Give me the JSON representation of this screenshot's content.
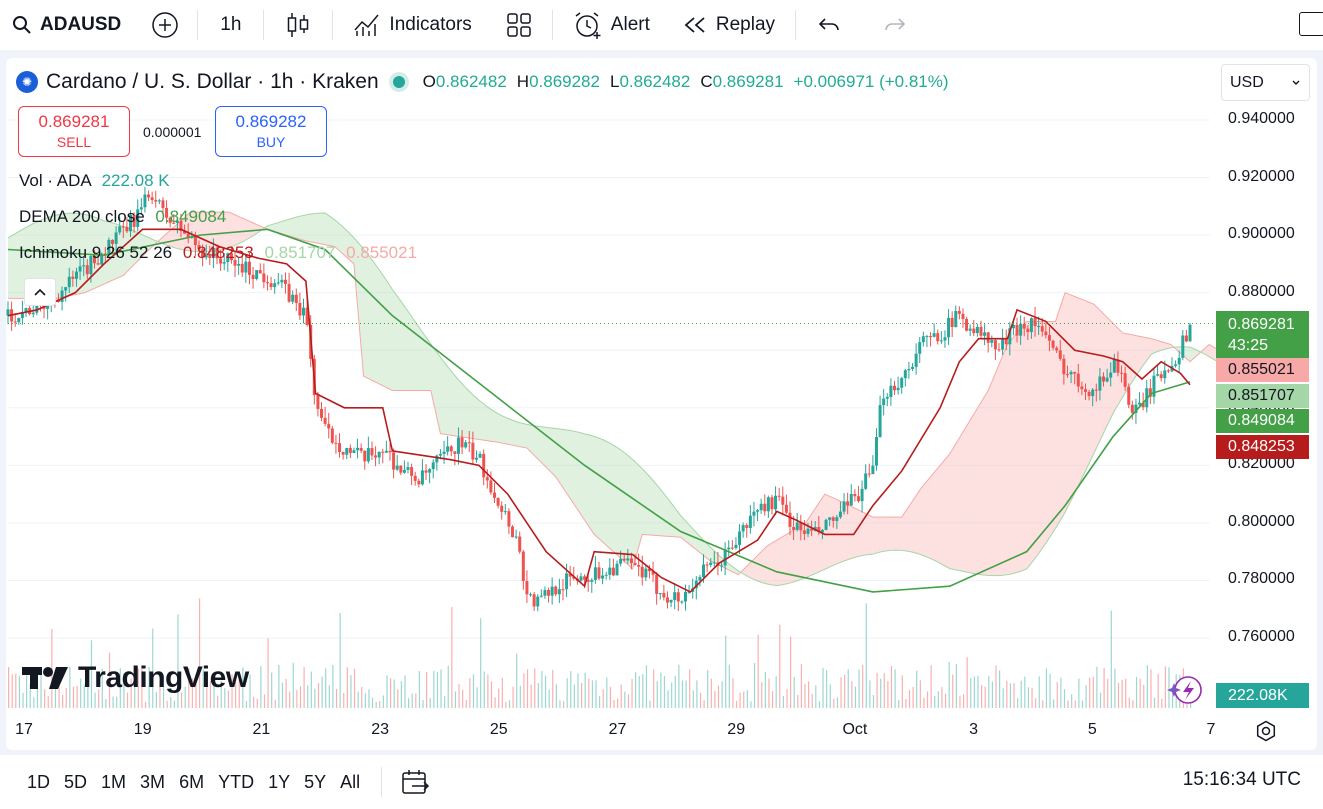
{
  "toolbar": {
    "symbol": "ADAUSD",
    "interval": "1h",
    "indicators_label": "Indicators",
    "alert_label": "Alert",
    "replay_label": "Replay"
  },
  "legend": {
    "title": "Cardano / U. S. Dollar · 1h · Kraken",
    "ohlc": {
      "o_label": "O",
      "o": "0.862482",
      "h_label": "H",
      "h": "0.869282",
      "l_label": "L",
      "l": "0.862482",
      "c_label": "C",
      "c": "0.869281",
      "change": "+0.006971 (+0.81%)"
    },
    "sell_price": "0.869281",
    "sell_label": "SELL",
    "buy_price": "0.869282",
    "buy_label": "BUY",
    "spread": "0.000001",
    "vol_label": "Vol · ADA",
    "vol_value": "222.08 K",
    "dema_label": "DEMA 200 close",
    "dema_value": "0.849084",
    "ichimoku_label": "Ichimoku 9 26 52 26",
    "ichimoku_v1": "0.848253",
    "ichimoku_v2": "0.851707",
    "ichimoku_v3": "0.855021"
  },
  "currency": "USD",
  "price_scale": {
    "labels": [
      "0.940000",
      "0.920000",
      "0.900000",
      "0.880000",
      "0.840000",
      "0.820000",
      "0.800000",
      "0.780000",
      "0.760000"
    ],
    "current_price": "0.869281",
    "countdown": "43:25",
    "markers": [
      {
        "value": "0.855021",
        "color": "#f7a9a7",
        "text_color": "#131722"
      },
      {
        "value": "0.851707",
        "color": "#a5d6a7",
        "text_color": "#131722"
      },
      {
        "value": "0.849084",
        "color": "#43a047",
        "text_color": "#ffffff"
      },
      {
        "value": "0.848253",
        "color": "#b71c1c",
        "text_color": "#ffffff"
      }
    ],
    "volume_label": "222.08K"
  },
  "time_axis": {
    "labels": [
      "17",
      "19",
      "21",
      "23",
      "25",
      "27",
      "29",
      "Oct",
      "3",
      "5",
      "7"
    ]
  },
  "bottom": {
    "ranges": [
      "1D",
      "5D",
      "1M",
      "3M",
      "6M",
      "YTD",
      "1Y",
      "5Y",
      "All"
    ],
    "clock": "15:16:34 UTC"
  },
  "branding": "TradingView",
  "colors": {
    "up": "#26a69a",
    "down": "#ef5350",
    "dema": "#43a047",
    "tenkan": "#b71c1c",
    "cloud_bull": "#a5d6a7",
    "cloud_bear": "#f7a9a7",
    "accent": "#2962ff"
  },
  "chart_data": {
    "type": "candlestick",
    "x_range": [
      "Sep 16",
      "Oct 7"
    ],
    "y_range": [
      0.745,
      0.955
    ],
    "current_price": 0.869281,
    "series": [
      {
        "name": "ADAUSD",
        "kind": "close",
        "points": [
          [
            0,
            0.872
          ],
          [
            8,
            0.876
          ],
          [
            16,
            0.888
          ],
          [
            22,
            0.898
          ],
          [
            26,
            0.905
          ],
          [
            30,
            0.915
          ],
          [
            32,
            0.908
          ],
          [
            36,
            0.902
          ],
          [
            40,
            0.895
          ],
          [
            44,
            0.892
          ],
          [
            50,
            0.888
          ],
          [
            56,
            0.884
          ],
          [
            60,
            0.876
          ],
          [
            62,
            0.872
          ],
          [
            64,
            0.842
          ],
          [
            66,
            0.832
          ],
          [
            70,
            0.826
          ],
          [
            74,
            0.822
          ],
          [
            78,
            0.826
          ],
          [
            82,
            0.818
          ],
          [
            86,
            0.815
          ],
          [
            90,
            0.822
          ],
          [
            94,
            0.828
          ],
          [
            98,
            0.822
          ],
          [
            102,
            0.808
          ],
          [
            106,
            0.794
          ],
          [
            108,
            0.775
          ],
          [
            110,
            0.772
          ],
          [
            114,
            0.778
          ],
          [
            118,
            0.781
          ],
          [
            122,
            0.782
          ],
          [
            128,
            0.786
          ],
          [
            132,
            0.783
          ],
          [
            136,
            0.776
          ],
          [
            140,
            0.773
          ],
          [
            144,
            0.782
          ],
          [
            148,
            0.786
          ],
          [
            152,
            0.795
          ],
          [
            156,
            0.805
          ],
          [
            160,
            0.808
          ],
          [
            164,
            0.798
          ],
          [
            168,
            0.796
          ],
          [
            172,
            0.801
          ],
          [
            176,
            0.808
          ],
          [
            180,
            0.818
          ],
          [
            182,
            0.845
          ],
          [
            186,
            0.85
          ],
          [
            190,
            0.862
          ],
          [
            194,
            0.866
          ],
          [
            198,
            0.872
          ],
          [
            202,
            0.866
          ],
          [
            206,
            0.86
          ],
          [
            210,
            0.868
          ],
          [
            214,
            0.87
          ],
          [
            218,
            0.858
          ],
          [
            222,
            0.85
          ],
          [
            226,
            0.846
          ],
          [
            228,
            0.85
          ],
          [
            230,
            0.856
          ],
          [
            232,
            0.852
          ],
          [
            234,
            0.836
          ],
          [
            236,
            0.842
          ],
          [
            240,
            0.852
          ],
          [
            244,
            0.86
          ],
          [
            246,
            0.869
          ]
        ]
      },
      {
        "name": "DEMA 200 close",
        "kind": "line",
        "color": "#43a047",
        "points": [
          [
            0,
            0.895
          ],
          [
            20,
            0.893
          ],
          [
            40,
            0.9
          ],
          [
            54,
            0.902
          ],
          [
            66,
            0.895
          ],
          [
            80,
            0.872
          ],
          [
            100,
            0.846
          ],
          [
            120,
            0.82
          ],
          [
            140,
            0.797
          ],
          [
            160,
            0.783
          ],
          [
            180,
            0.776
          ],
          [
            196,
            0.778
          ],
          [
            212,
            0.79
          ],
          [
            220,
            0.806
          ],
          [
            230,
            0.83
          ],
          [
            238,
            0.845
          ],
          [
            244,
            0.848
          ],
          [
            246,
            0.849
          ]
        ]
      },
      {
        "name": "Ichimoku 9 26 52 26",
        "kind": "line",
        "color": "#b71c1c",
        "points": [
          [
            0,
            0.872
          ],
          [
            6,
            0.874
          ],
          [
            14,
            0.88
          ],
          [
            20,
            0.89
          ],
          [
            28,
            0.902
          ],
          [
            36,
            0.902
          ],
          [
            44,
            0.896
          ],
          [
            52,
            0.892
          ],
          [
            58,
            0.89
          ],
          [
            62,
            0.884
          ],
          [
            64,
            0.845
          ],
          [
            70,
            0.84
          ],
          [
            78,
            0.84
          ],
          [
            80,
            0.825
          ],
          [
            92,
            0.822
          ],
          [
            98,
            0.82
          ],
          [
            104,
            0.81
          ],
          [
            108,
            0.8
          ],
          [
            112,
            0.79
          ],
          [
            120,
            0.778
          ],
          [
            122,
            0.79
          ],
          [
            130,
            0.789
          ],
          [
            136,
            0.781
          ],
          [
            142,
            0.776
          ],
          [
            148,
            0.786
          ],
          [
            156,
            0.794
          ],
          [
            160,
            0.804
          ],
          [
            164,
            0.801
          ],
          [
            170,
            0.796
          ],
          [
            176,
            0.796
          ],
          [
            180,
            0.806
          ],
          [
            186,
            0.818
          ],
          [
            194,
            0.84
          ],
          [
            198,
            0.856
          ],
          [
            202,
            0.864
          ],
          [
            208,
            0.864
          ],
          [
            210,
            0.874
          ],
          [
            216,
            0.87
          ],
          [
            222,
            0.86
          ],
          [
            228,
            0.858
          ],
          [
            232,
            0.856
          ],
          [
            236,
            0.85
          ],
          [
            240,
            0.856
          ],
          [
            244,
            0.852
          ],
          [
            246,
            0.848
          ]
        ]
      }
    ]
  }
}
